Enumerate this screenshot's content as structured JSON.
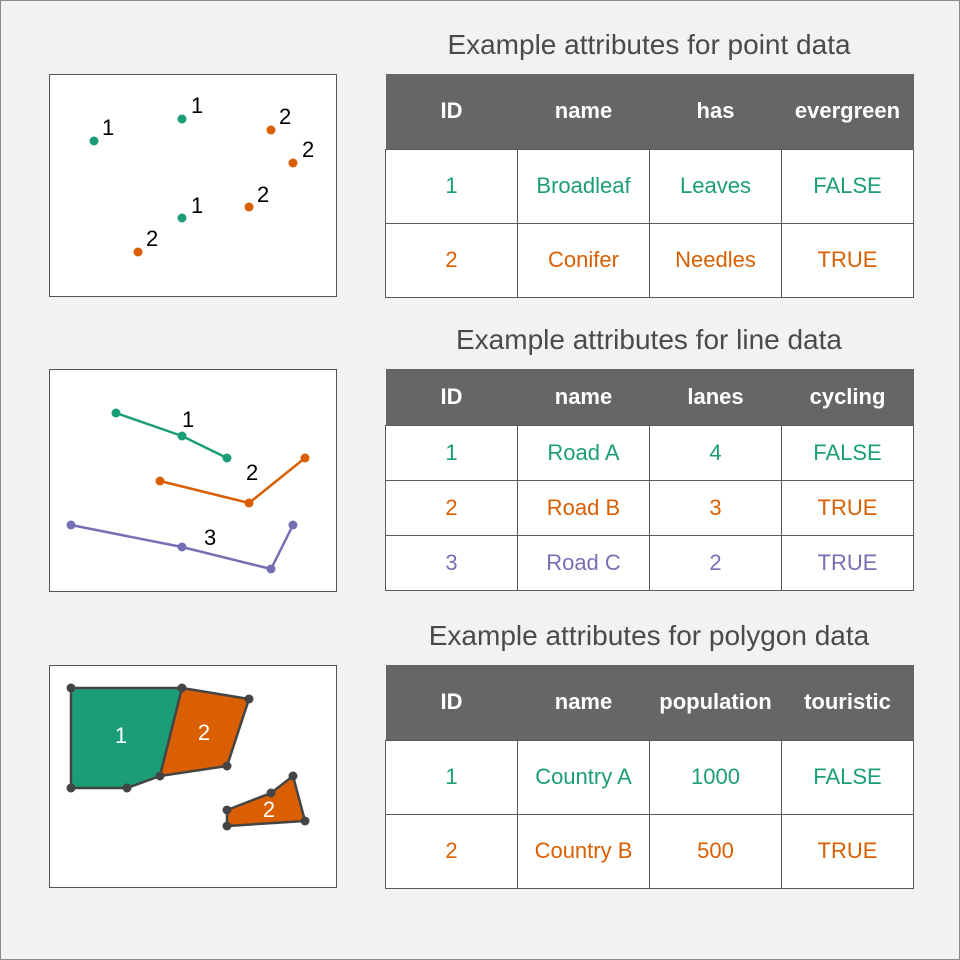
{
  "colors": {
    "green": "#1b9e77",
    "orange": "#d95f02",
    "purple": "#7570b3",
    "header_bg": "#666666",
    "outline": "#444444"
  },
  "point_section": {
    "title": "Example attributes for point data",
    "columns": [
      "ID",
      "name",
      "has",
      "evergreen"
    ],
    "rows": [
      {
        "id": "1",
        "name": "Broadleaf",
        "has": "Leaves",
        "evergreen": "FALSE",
        "color": "green"
      },
      {
        "id": "2",
        "name": "Conifer",
        "has": "Needles",
        "evergreen": "TRUE",
        "color": "orange"
      }
    ],
    "map_labels": [
      "1",
      "1",
      "2",
      "2",
      "1",
      "2",
      "2"
    ]
  },
  "line_section": {
    "title": "Example attributes for line data",
    "columns": [
      "ID",
      "name",
      "lanes",
      "cycling"
    ],
    "rows": [
      {
        "id": "1",
        "name": "Road A",
        "lanes": "4",
        "cycling": "FALSE",
        "color": "green"
      },
      {
        "id": "2",
        "name": "Road B",
        "lanes": "3",
        "cycling": "TRUE",
        "color": "orange"
      },
      {
        "id": "3",
        "name": "Road C",
        "lanes": "2",
        "cycling": "TRUE",
        "color": "purple"
      }
    ],
    "map_labels": [
      "1",
      "2",
      "3"
    ]
  },
  "polygon_section": {
    "title": "Example attributes for polygon data",
    "columns": [
      "ID",
      "name",
      "population",
      "touristic"
    ],
    "rows": [
      {
        "id": "1",
        "name": "Country A",
        "population": "1000",
        "touristic": "FALSE",
        "color": "green"
      },
      {
        "id": "2",
        "name": "Country B",
        "population": "500",
        "touristic": "TRUE",
        "color": "orange"
      }
    ],
    "map_labels": [
      "1",
      "2",
      "2"
    ]
  }
}
